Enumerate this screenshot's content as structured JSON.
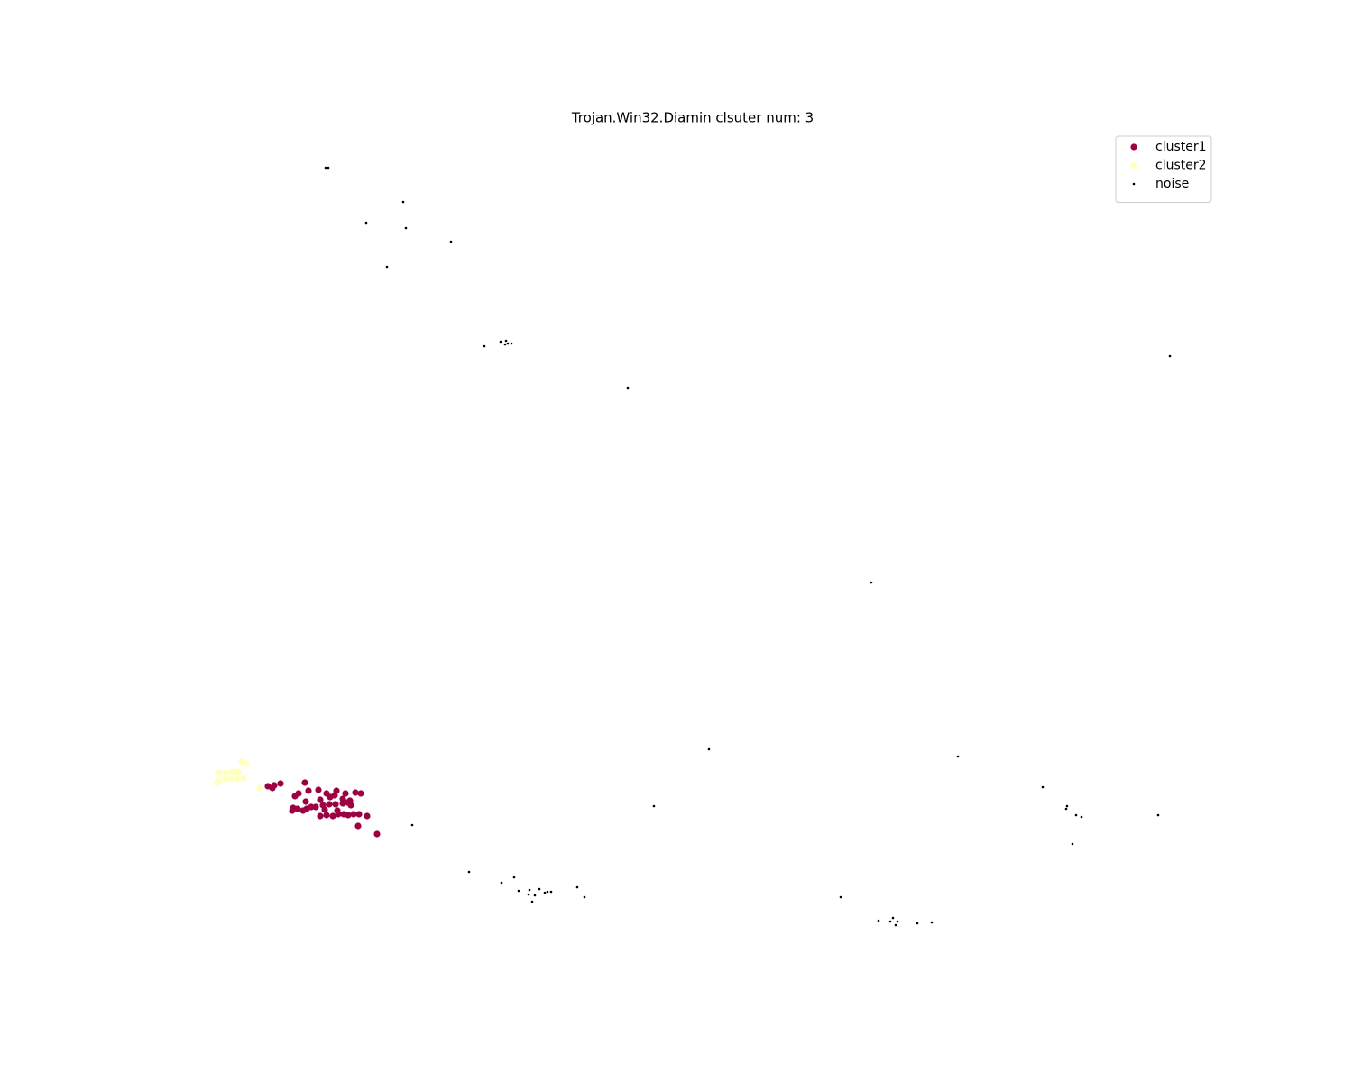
{
  "chart_data": {
    "type": "scatter",
    "title": "Trojan.Win32.Diamin clsuter num: 3",
    "xlim": [
      188,
      1350
    ],
    "ylim": [
      144,
      1056
    ],
    "legend": "upper right",
    "series": [
      {
        "name": "cluster1",
        "color": "#9e0142",
        "x": [
          297,
          302,
          304,
          311,
          338,
          353,
          331,
          327,
          342,
          362,
          373,
          383,
          394,
          400,
          355,
          339,
          366,
          371,
          380,
          388,
          325,
          330,
          340,
          345,
          350,
          358,
          365,
          372,
          380,
          385,
          389,
          324,
          336,
          355,
          362,
          369,
          375,
          381,
          386,
          392,
          398,
          407,
          397,
          418,
          360,
          374
        ],
        "values": [
          328,
          326,
          329,
          331,
          332,
          324,
          320,
          317,
          323,
          320,
          323,
          320,
          321,
          320,
          313,
          311,
          316,
          318,
          314,
          312,
          304,
          303,
          303,
          305,
          305,
          307,
          308,
          308,
          309,
          310,
          307,
          301,
          301,
          295,
          296,
          295,
          297,
          297,
          296,
          297,
          297,
          295,
          284,
          275,
          302,
          301
        ]
      },
      {
        "name": "cluster2",
        "color": "#ffffbe",
        "x": [
          268,
          273,
          243,
          250,
          257,
          264,
          242,
          249,
          256,
          263,
          270,
          241,
          288
        ],
        "values": [
          355,
          353,
          343,
          343,
          344,
          344,
          334,
          336,
          336,
          336,
          337,
          332,
          326
        ]
      },
      {
        "name": "noise",
        "color": "#000000",
        "x": [
          361,
          364,
          447,
          406,
          450,
          500,
          429,
          537,
          555,
          561,
          563,
          567,
          560,
          696,
          1297,
          966,
          786,
          1062,
          725,
          457,
          1156,
          1183,
          1182,
          1193,
          1199,
          1284,
          1189,
          520,
          556,
          570,
          575,
          587,
          586,
          593,
          598,
          604,
          607,
          611,
          590,
          640,
          648,
          932,
          974,
          987,
          990,
          995,
          993,
          1017,
          1033
        ],
        "values": [
          1014,
          1014,
          976,
          953,
          947,
          932,
          904,
          816,
          821,
          822,
          819,
          819,
          818,
          770,
          805,
          554,
          369,
          361,
          306,
          285,
          327,
          306,
          303,
          296,
          294,
          296,
          264,
          233,
          221,
          227,
          212,
          213,
          208,
          207,
          214,
          210,
          211,
          211,
          200,
          216,
          205,
          205,
          179,
          178,
          182,
          178,
          174,
          176,
          177
        ]
      }
    ]
  }
}
